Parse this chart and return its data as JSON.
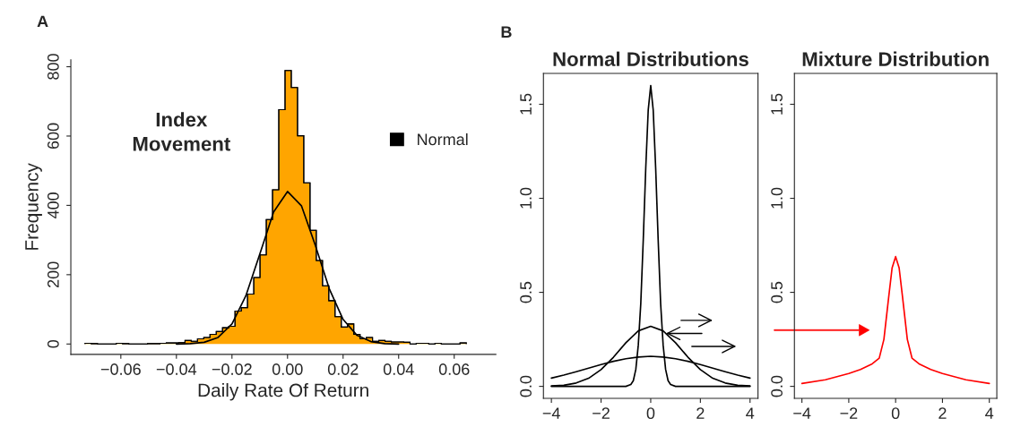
{
  "chart_data": [
    {
      "type": "histogram",
      "xlabel": "Daily Rate Of Return",
      "ylabel": "Frequency",
      "annotations": [
        "A",
        "Index\nMovement"
      ],
      "legend": "top right",
      "bins": [
        -0.0729,
        -0.07065,
        -0.0684,
        -0.06615,
        -0.0639,
        -0.06165,
        -0.0594,
        -0.05715,
        -0.0549,
        -0.05265,
        -0.0504,
        -0.04815,
        -0.0459,
        -0.04365,
        -0.0414,
        -0.03915,
        -0.0369,
        -0.03465,
        -0.0324,
        -0.03015,
        -0.0279,
        -0.02565,
        -0.0234,
        -0.02115,
        -0.0189,
        -0.01665,
        -0.0144,
        -0.01215,
        -0.0099,
        -0.00765,
        -0.0054,
        -0.00315,
        -0.0009,
        0.00135,
        0.0036,
        0.00585,
        0.0081,
        0.01035,
        0.0126,
        0.01485,
        0.0171,
        0.01935,
        0.0216,
        0.02385,
        0.0261,
        0.02835,
        0.0306,
        0.03285,
        0.0351,
        0.03735,
        0.0396,
        0.04185,
        0.0441,
        0.04635,
        0.0486,
        0.05085,
        0.0531,
        0.05535,
        0.0576,
        0.05985,
        0.0621,
        0.06435
      ],
      "series": [
        {
          "type": "histogram",
          "color": "#ffa500",
          "values": [
            2,
            1,
            0,
            0,
            0,
            2,
            1,
            0,
            0,
            0,
            1,
            1,
            2,
            3,
            3,
            4,
            10,
            8,
            15,
            19,
            28,
            36,
            47,
            51,
            95,
            105,
            144,
            192,
            257,
            359,
            445,
            676,
            789,
            740,
            601,
            465,
            328,
            241,
            168,
            125,
            79,
            49,
            58,
            28,
            15,
            19,
            8,
            10,
            8,
            6,
            6,
            5,
            0,
            2,
            2,
            0,
            2,
            0,
            0,
            0,
            3
          ]
        },
        {
          "type": "line",
          "name": "Normal",
          "color": "#000000",
          "x": [
            -0.04,
            -0.035,
            -0.03,
            -0.025,
            -0.02,
            -0.015,
            -0.01,
            -0.005,
            0,
            0.005,
            0.01,
            0.015,
            0.02,
            0.025,
            0.03,
            0.035,
            0.04
          ],
          "values": [
            0,
            1,
            5,
            19,
            58,
            139,
            259,
            381,
            440,
            399,
            285,
            160,
            71,
            25,
            7,
            1,
            0
          ]
        }
      ],
      "xlim": [
        -0.078,
        0.075
      ],
      "ylim": [
        -30,
        820
      ],
      "xticks": [
        {
          "value": -0.06,
          "label": "−0.06"
        },
        {
          "value": -0.04,
          "label": "−0.04"
        },
        {
          "value": -0.02,
          "label": "−0.02"
        },
        {
          "value": 0,
          "label": "0.00"
        },
        {
          "value": 0.02,
          "label": "0.02"
        },
        {
          "value": 0.04,
          "label": "0.04"
        },
        {
          "value": 0.06,
          "label": "0.06"
        }
      ],
      "yticks": [
        0,
        200,
        400,
        600,
        800
      ]
    },
    {
      "type": "line",
      "title": "Normal Distributions",
      "annotations": [
        "B"
      ],
      "series": [
        {
          "color": "#000000",
          "x": [
            -4,
            -3.5,
            -3,
            -2.5,
            -2,
            -1.5,
            -1,
            -0.5,
            0,
            0.5,
            1,
            1.5,
            2,
            2.5,
            3,
            3.5,
            4
          ],
          "values": [
            0.044,
            0.06,
            0.078,
            0.097,
            0.116,
            0.133,
            0.147,
            0.156,
            0.16,
            0.156,
            0.147,
            0.133,
            0.116,
            0.097,
            0.078,
            0.06,
            0.044
          ]
        },
        {
          "color": "#000000",
          "x": [
            -4,
            -3.5,
            -3,
            -2.5,
            -2,
            -1.5,
            -1,
            -0.5,
            0,
            0.5,
            1,
            1.5,
            2,
            2.5,
            3,
            3.5,
            4
          ],
          "values": [
            0.002,
            0.006,
            0.018,
            0.043,
            0.089,
            0.155,
            0.232,
            0.295,
            0.319,
            0.295,
            0.232,
            0.155,
            0.089,
            0.043,
            0.018,
            0.006,
            0.002
          ]
        },
        {
          "color": "#000000",
          "x": [
            -4,
            -2,
            -1,
            -0.8,
            -0.7,
            -0.6,
            -0.5,
            -0.4,
            -0.3,
            -0.2,
            -0.1,
            0,
            0.1,
            0.2,
            0.3,
            0.4,
            0.5,
            0.6,
            0.7,
            0.8,
            1,
            2,
            4
          ],
          "values": [
            0,
            0,
            0,
            0.01,
            0.03,
            0.09,
            0.22,
            0.44,
            0.78,
            1.16,
            1.47,
            1.6,
            1.47,
            1.16,
            0.78,
            0.44,
            0.22,
            0.09,
            0.03,
            0.01,
            0,
            0,
            0
          ]
        }
      ],
      "xlim": [
        -4.32,
        4.32
      ],
      "ylim": [
        -0.064,
        1.664
      ],
      "xticks": [
        {
          "value": -4,
          "label": "−4"
        },
        {
          "value": -2,
          "label": "−2"
        },
        0,
        2,
        4
      ],
      "yticks": [
        {
          "value": 0,
          "label": "0.0"
        },
        {
          "value": 0.5,
          "label": "0.5"
        },
        {
          "value": 1,
          "label": "1.0"
        },
        {
          "value": 1.5,
          "label": "1.5"
        }
      ]
    },
    {
      "type": "line",
      "title": "Mixture Distribution",
      "series": [
        {
          "color": "#ff0000",
          "x": [
            -4,
            -3,
            -2,
            -1.5,
            -1,
            -0.7,
            -0.5,
            -0.3,
            -0.15,
            0,
            0.15,
            0.3,
            0.5,
            0.7,
            1,
            1.5,
            2,
            3,
            4
          ],
          "values": [
            0.015,
            0.035,
            0.068,
            0.09,
            0.12,
            0.15,
            0.25,
            0.47,
            0.63,
            0.69,
            0.63,
            0.47,
            0.25,
            0.15,
            0.12,
            0.09,
            0.068,
            0.035,
            0.015
          ]
        }
      ],
      "xlim": [
        -4.32,
        4.32
      ],
      "ylim": [
        -0.064,
        1.664
      ],
      "xticks": [
        {
          "value": -4,
          "label": "−4"
        },
        {
          "value": -2,
          "label": "−2"
        },
        0,
        2,
        4
      ],
      "yticks": [
        {
          "value": 0,
          "label": "0.0"
        },
        {
          "value": 0.5,
          "label": "0.5"
        },
        {
          "value": 1,
          "label": "1.0"
        },
        {
          "value": 1.5,
          "label": "1.5"
        }
      ]
    }
  ]
}
